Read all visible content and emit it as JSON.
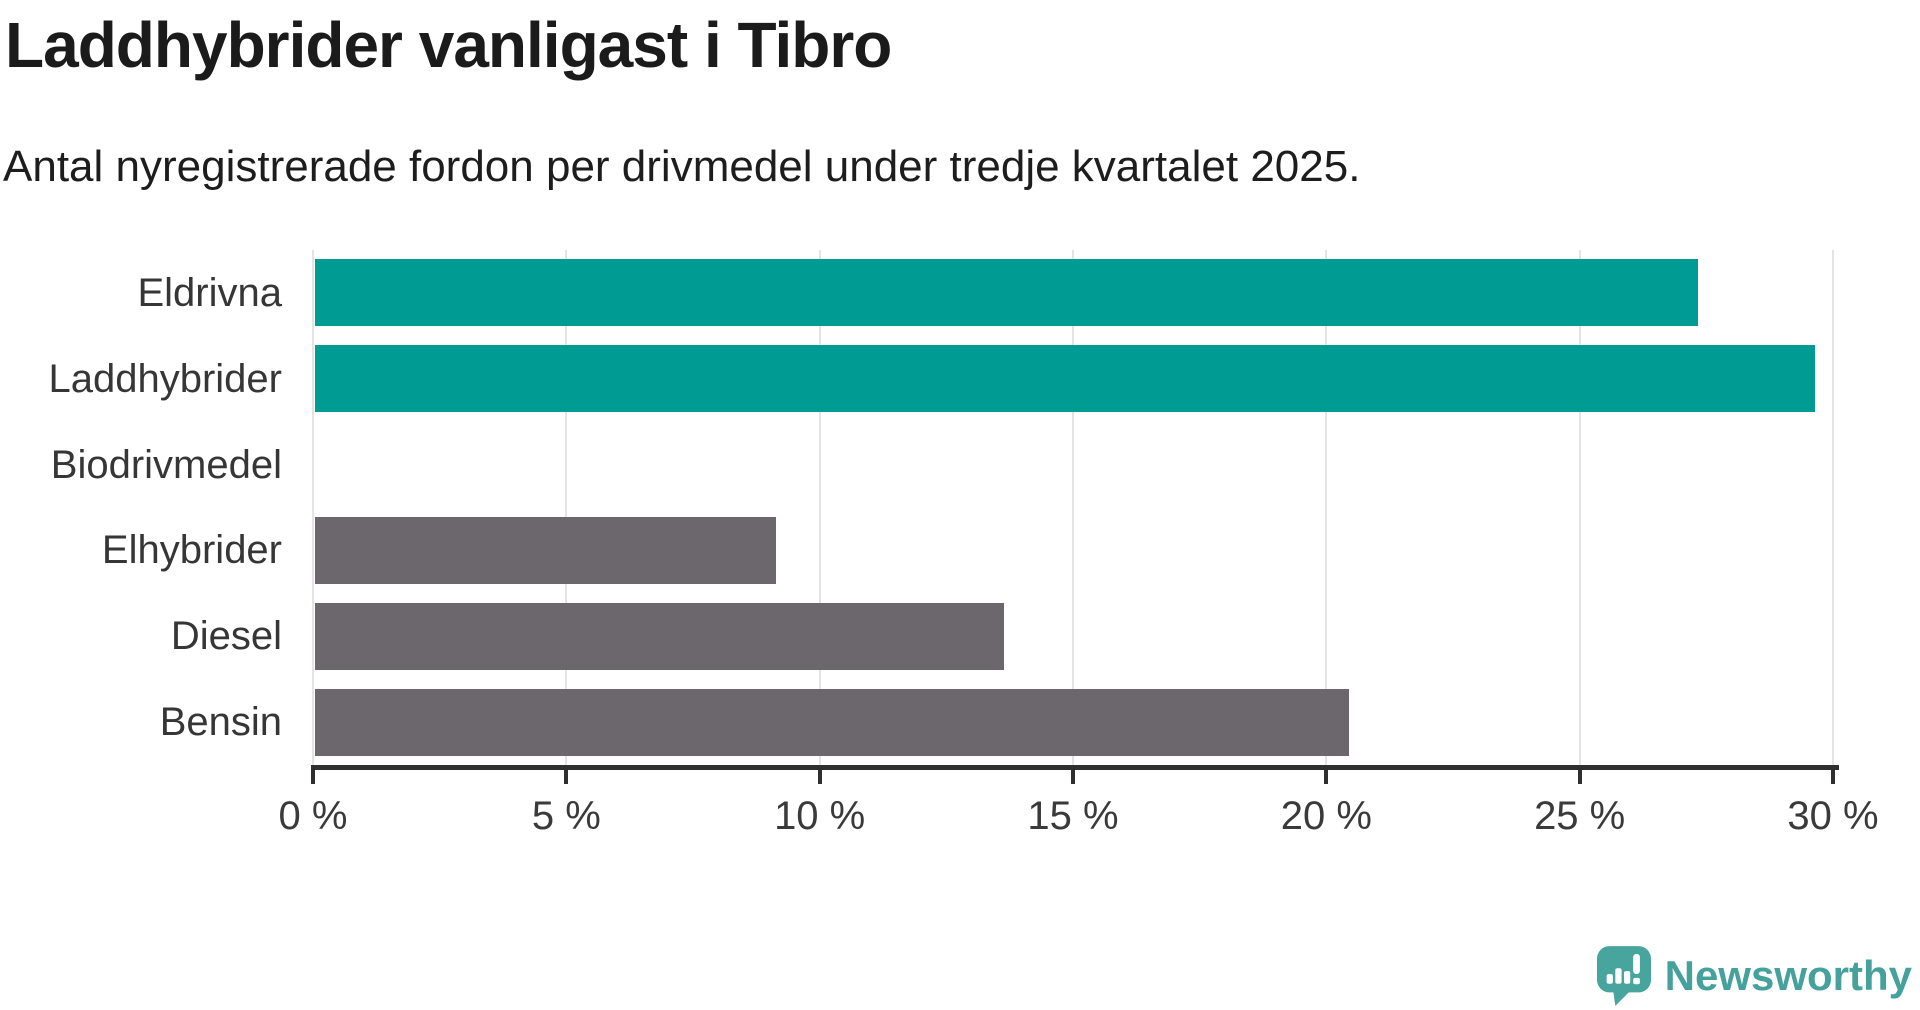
{
  "chart_data": {
    "type": "bar",
    "orientation": "horizontal",
    "title": "Laddhybrider vanligast i Tibro",
    "subtitle": "Antal nyregistrerade fordon per drivmedel under tredje kvartalet 2025.",
    "categories": [
      "Eldrivna",
      "Laddhybrider",
      "Biodrivmedel",
      "Elhybrider",
      "Diesel",
      "Bensin"
    ],
    "values": [
      27.3,
      29.6,
      0,
      9.1,
      13.6,
      20.4
    ],
    "unit": "%",
    "highlighted": [
      true,
      true,
      false,
      false,
      false,
      false
    ],
    "xlim": [
      0,
      30
    ],
    "x_ticks": [
      {
        "value": 0,
        "label": "0 %"
      },
      {
        "value": 5,
        "label": "5 %"
      },
      {
        "value": 10,
        "label": "10 %"
      },
      {
        "value": 15,
        "label": "15 %"
      },
      {
        "value": 20,
        "label": "20 %"
      },
      {
        "value": 25,
        "label": "25 %"
      },
      {
        "value": 30,
        "label": "30 %"
      }
    ],
    "grid": "vertical-gridlines-on",
    "legend": "none",
    "colors": {
      "highlight": "#009c93",
      "default": "#6b676d",
      "gridline": "#e4e4e4",
      "axis": "#2f2f2f"
    }
  },
  "branding": {
    "logo_text": "Newsworthy",
    "logo_color": "#47a59e",
    "logo_text_color": "#45a19b"
  }
}
